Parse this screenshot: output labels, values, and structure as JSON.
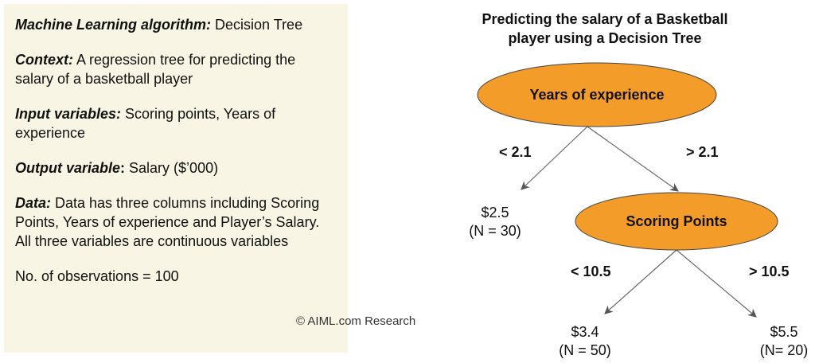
{
  "panel": {
    "algorithm": {
      "label": "Machine Learning algorithm:",
      "value": " Decision Tree"
    },
    "context": {
      "label": "Context:",
      "value": " A regression tree for predicting the salary of a basketball player"
    },
    "inputs": {
      "label": "Input variables:",
      "value": " Scoring points, Years of experience"
    },
    "output": {
      "label": "Output variable",
      "colon": ":",
      "value": " Salary ($’000)"
    },
    "data": {
      "label": "Data:",
      "value": " Data has three columns including Scoring Points, Years of experience and Player’s Salary. All three variables are continuous variables"
    },
    "observations": "No. of observations = 100"
  },
  "watermark": "© AIML.com Research",
  "diagram": {
    "title_line1": "Predicting the salary of a Basketball",
    "title_line2": "player using a Decision Tree",
    "node_fill": "#f39c2a",
    "root": {
      "label": "Years of experience"
    },
    "root_left_edge": "< 2.1",
    "root_right_edge": "> 2.1",
    "leaf1": {
      "value": "$2.5",
      "count": "(N = 30)"
    },
    "child": {
      "label": "Scoring Points"
    },
    "child_left_edge": "< 10.5",
    "child_right_edge": "> 10.5",
    "leaf2": {
      "value": "$3.4",
      "count": "(N = 50)"
    },
    "leaf3": {
      "value": "$5.5",
      "count": "(N= 20)"
    }
  }
}
